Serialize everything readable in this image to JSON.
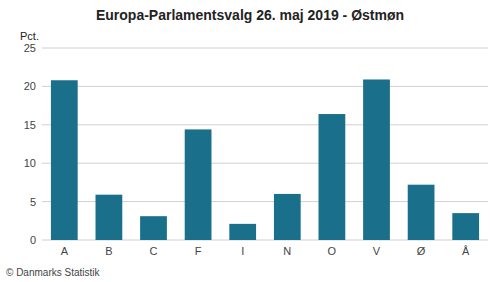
{
  "chart_data": {
    "type": "bar",
    "title": "Europa-Parlamentsvalg 26. maj 2019 - Østmøn",
    "categories": [
      "A",
      "B",
      "C",
      "F",
      "I",
      "N",
      "O",
      "V",
      "Ø",
      "Å"
    ],
    "values": [
      20.8,
      5.9,
      3.1,
      14.4,
      2.1,
      6.0,
      16.4,
      20.9,
      7.2,
      3.5
    ],
    "color": "#1a6f8a",
    "ylabel": "Pct.",
    "ylim": [
      0,
      25
    ],
    "yticks": [
      0,
      5,
      10,
      15,
      20,
      25
    ],
    "grid": true,
    "annotations": [
      "© Danmarks Statistik"
    ]
  }
}
